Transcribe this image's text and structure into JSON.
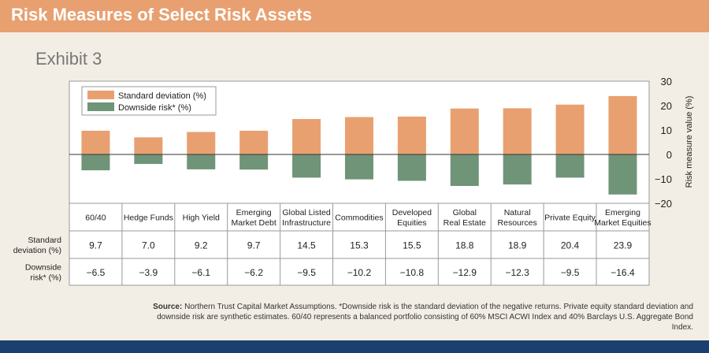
{
  "header": {
    "title": "Risk Measures of Select Risk Assets"
  },
  "exhibit_label": "Exhibit 3",
  "colors": {
    "std": "#e8a070",
    "down": "#6f9478",
    "header": "#e8a070",
    "footer": "#1b3f6e"
  },
  "chart_data": {
    "type": "bar",
    "categories": [
      [
        "60/40"
      ],
      [
        "Hedge Funds"
      ],
      [
        "High Yield"
      ],
      [
        "Emerging",
        "Market Debt"
      ],
      [
        "Global Listed",
        "Infrastructure"
      ],
      [
        "Commodities"
      ],
      [
        "Developed",
        "Equities"
      ],
      [
        "Global",
        "Real Estate"
      ],
      [
        "Natural",
        "Resources"
      ],
      [
        "Private Equity"
      ],
      [
        "Emerging",
        "Market Equities"
      ]
    ],
    "series": [
      {
        "name": "Standard deviation (%)",
        "row_label": [
          "Standard",
          "deviation (%)"
        ],
        "values": [
          9.7,
          7.0,
          9.2,
          9.7,
          14.5,
          15.3,
          15.5,
          18.8,
          18.9,
          20.4,
          23.9
        ],
        "labels": [
          "9.7",
          "7.0",
          "9.2",
          "9.7",
          "14.5",
          "15.3",
          "15.5",
          "18.8",
          "18.9",
          "20.4",
          "23.9"
        ]
      },
      {
        "name": "Downside risk* (%)",
        "row_label": [
          "Downside",
          "risk* (%)"
        ],
        "values": [
          -6.5,
          -3.9,
          -6.1,
          -6.2,
          -9.5,
          -10.2,
          -10.8,
          -12.9,
          -12.3,
          -9.5,
          -16.4
        ],
        "labels": [
          "−6.5",
          "−3.9",
          "−6.1",
          "−6.2",
          "−9.5",
          "−10.2",
          "−10.8",
          "−12.9",
          "−12.3",
          "−9.5",
          "−16.4"
        ]
      }
    ],
    "ylabel": "Risk measure value (%)",
    "ylim": [
      -20,
      30
    ],
    "yticks": [
      30,
      20,
      10,
      0,
      -10,
      -20
    ],
    "ytick_labels": [
      "30",
      "20",
      "10",
      "0",
      "−10",
      "−20"
    ],
    "axis_side": "right",
    "legend_position": "top-left",
    "grid": false
  },
  "source": {
    "lead": "Source:",
    "text": " Northern Trust Capital Market Assumptions. *Downside risk is the standard deviation of the negative returns. Private equity standard deviation and downside risk are synthetic estimates. 60/40 represents a balanced portfolio consisting of 60% MSCI ACWI Index and 40% Barclays U.S. Aggregate Bond Index."
  }
}
